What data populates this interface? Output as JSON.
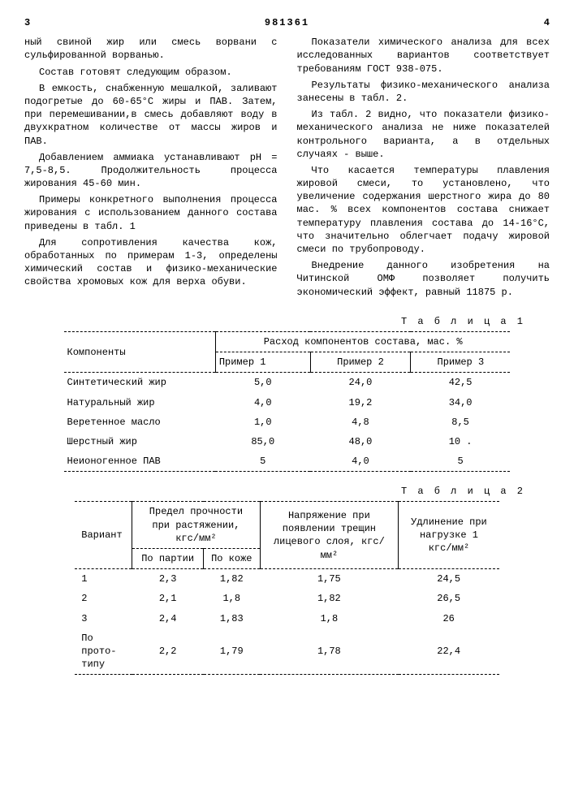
{
  "header": {
    "page_left": "3",
    "doc_number": "981361",
    "page_right": "4"
  },
  "left_col": {
    "p1": "ный свиной жир или смесь ворвани с сульфированной ворванью.",
    "p2": "Состав готовят следующим образом.",
    "p3": "В емкость, снабженную мешалкой, заливают подогретые до 60-65°С жиры и ПАВ. Затем, при перемешивании,в смесь добавляют воду в двухкратном количестве от массы жиров и ПАВ.",
    "p4": "Добавлением аммиака устанавливают pH = 7,5-8,5. Продолжительность процесса жирования 45-60 мин.",
    "p5": "Примеры конкретного выполнения процесса жирования с использованием данного состава приведены в табл. 1",
    "p6": "Для сопротивления качества кож, обработанных по примерам 1-3, определены химический состав и физико-механические свойства хромовых кож для верха обуви."
  },
  "right_col": {
    "p1": "Показатели химического анализа для всех исследованных вариантов соответствует требованиям ГОСТ 938-075.",
    "p2": "Результаты физико-механического анализа занесены в табл. 2.",
    "p3": "Из табл. 2 видно, что показатели физико-механического анализа не ниже показателей контрольного варианта, а в отдельных случаях - выше.",
    "p4": "Что касается температуры плавления жировой смеси, то установлено, что увеличение содержания шерстного жира до 80 мас. % всех компонентов состава снижает температуру плавления состава до 14-16°С, что значительно облегчает подачу жировой смеси по трубопроводу.",
    "p5": "Внедрение данного изобретения на Читинской ОМФ позволяет получить экономический эффект, равный 11875 р."
  },
  "table1": {
    "caption": "Т а б л и ц а 1",
    "col_component": "Компоненты",
    "col_group": "Расход компонентов состава, мас. %",
    "col_p1": "Пример 1",
    "col_p2": "Пример 2",
    "col_p3": "Пример 3",
    "rows": [
      {
        "name": "Синтетический жир",
        "p1": "5,0",
        "p2": "24,0",
        "p3": "42,5"
      },
      {
        "name": "Натуральный жир",
        "p1": "4,0",
        "p2": "19,2",
        "p3": "34,0"
      },
      {
        "name": "Веретенное масло",
        "p1": "1,0",
        "p2": "4,8",
        "p3": "8,5"
      },
      {
        "name": "Шерстный жир",
        "p1": "85,0",
        "p2": "48,0",
        "p3": "10 ."
      },
      {
        "name": "Неионогенное ПАВ",
        "p1": "5",
        "p2": "4,0",
        "p3": "5"
      }
    ]
  },
  "table2": {
    "caption": "Т а б л и ц а 2",
    "col_variant": "Вариант",
    "col_strength": "Предел прочности при растяжении, кгс/мм²",
    "col_strength_a": "По партии",
    "col_strength_b": "По коже",
    "col_stress": "Напряжение при появлении трещин лицевого слоя, кгс/мм²",
    "col_elong": "Удлинение при нагрузке 1 кгс/мм²",
    "rows": [
      {
        "v": "1",
        "a": "2,3",
        "b": "1,82",
        "c": "1,75",
        "d": "24,5"
      },
      {
        "v": "2",
        "a": "2,1",
        "b": "1,8",
        "c": "1,82",
        "d": "26,5"
      },
      {
        "v": "3",
        "a": "2,4",
        "b": "1,83",
        "c": "1,8",
        "d": "26"
      }
    ],
    "proto_label": "По прото-\nтипу",
    "proto": {
      "a": "2,2",
      "b": "1,79",
      "c": "1,78",
      "d": "22,4"
    }
  }
}
